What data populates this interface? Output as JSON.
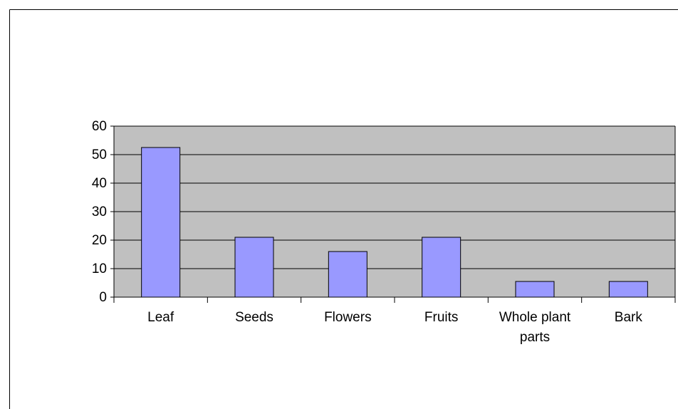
{
  "chart_data": {
    "type": "bar",
    "categories": [
      "Leaf",
      "Seeds",
      "Flowers",
      "Fruits",
      "Whole plant parts",
      "Bark"
    ],
    "values": [
      52.5,
      21,
      16,
      21,
      5.5,
      5.5
    ],
    "color": "#9999ff",
    "ylim": [
      0,
      60
    ],
    "yticks": [
      0,
      10,
      20,
      30,
      40,
      50,
      60
    ],
    "grid": true
  }
}
